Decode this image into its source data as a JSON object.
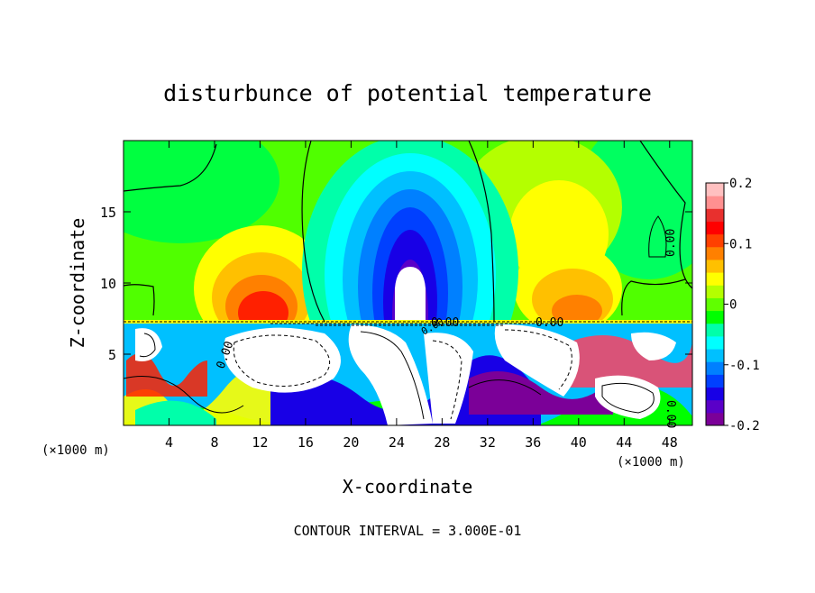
{
  "chart_data": {
    "type": "heatmap",
    "title": "disturbunce of potential temperature",
    "xlabel": "X-coordinate",
    "ylabel": "Z-coordinate",
    "x_unit": "(×1000 m)",
    "z_unit": "(×1000 m)",
    "footer": "CONTOUR INTERVAL = 3.000E-01",
    "xlim": [
      0,
      50
    ],
    "zlim": [
      0,
      20
    ],
    "x_ticks": [
      "4",
      "8",
      "12",
      "16",
      "20",
      "24",
      "28",
      "32",
      "36",
      "40",
      "44",
      "48"
    ],
    "z_ticks": [
      "5",
      "10",
      "15"
    ],
    "colorbar": {
      "range": [
        -0.2,
        0.2
      ],
      "tick_labels": [
        "0.2",
        "0.1",
        "0",
        "-0.1",
        "-0.2"
      ],
      "colors": [
        "#7b0098",
        "#5a00c8",
        "#1800e6",
        "#0040ff",
        "#0080ff",
        "#00c0ff",
        "#00ffff",
        "#00ffaa",
        "#00ff00",
        "#60ff00",
        "#b4ff00",
        "#ffff00",
        "#ffc000",
        "#ff8000",
        "#ff4000",
        "#ff0000",
        "#e8302e",
        "#ff9090",
        "#ffc0c0"
      ]
    },
    "contour_labels": [
      "0.00",
      "0.00",
      "0.00",
      "0.00",
      "0.00",
      "0.00"
    ]
  }
}
